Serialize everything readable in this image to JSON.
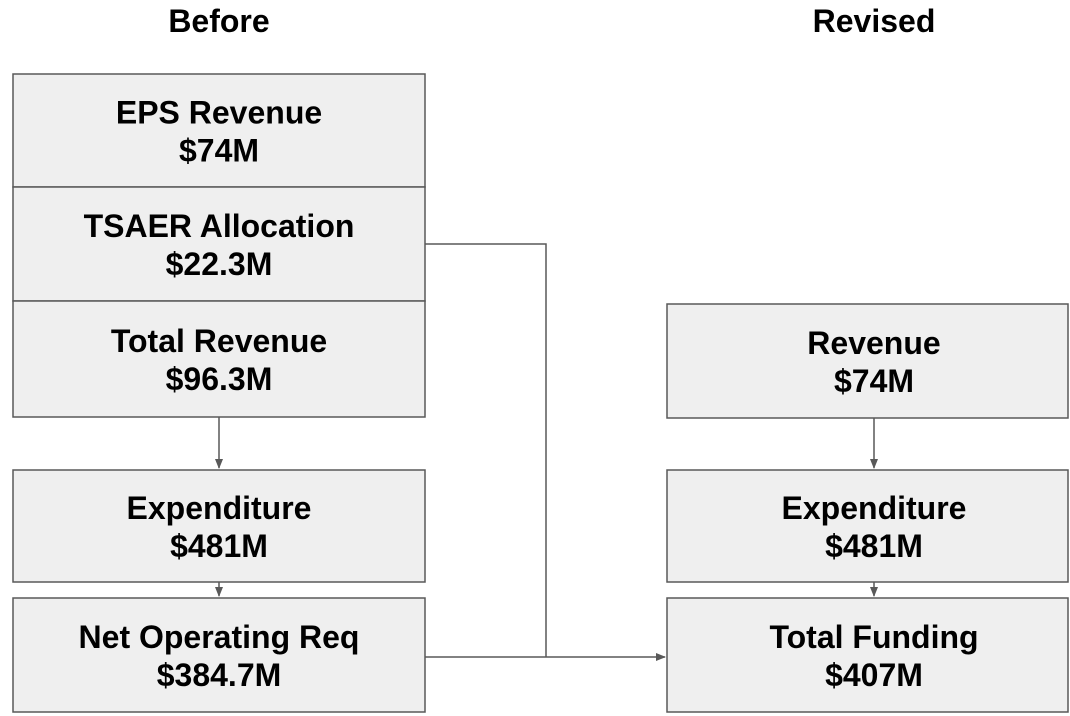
{
  "columns": [
    {
      "title": "Before",
      "nodes": [
        {
          "label": "EPS Revenue",
          "value": "$74M"
        },
        {
          "label": "TSAER Allocation",
          "value": "$22.3M"
        },
        {
          "label": "Total Revenue",
          "value": "$96.3M"
        },
        {
          "label": "Expenditure",
          "value": "$481M"
        },
        {
          "label": "Net Operating Req",
          "value": "$384.7M"
        }
      ]
    },
    {
      "title": "Revised",
      "nodes": [
        {
          "label": "Revenue",
          "value": "$74M"
        },
        {
          "label": "Expenditure",
          "value": "$481M"
        },
        {
          "label": "Total Funding",
          "value": "$407M"
        }
      ]
    }
  ]
}
